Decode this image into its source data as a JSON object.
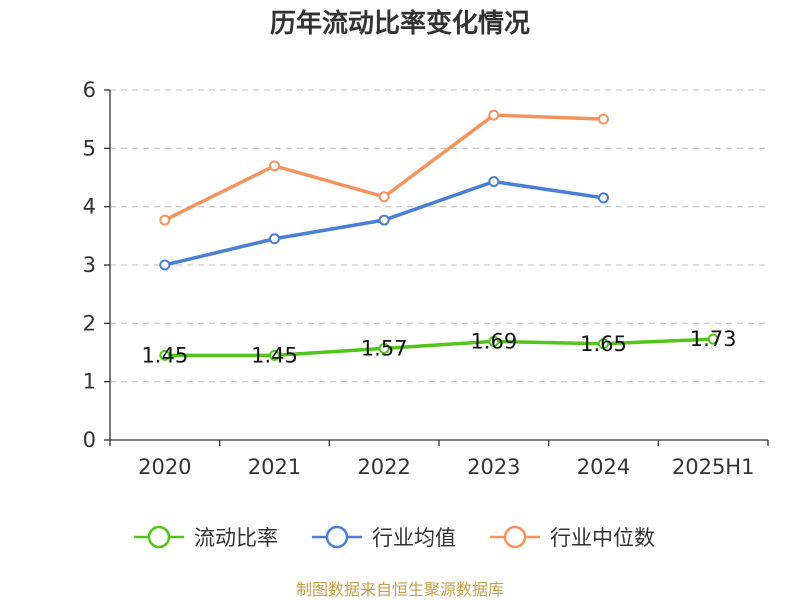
{
  "chart_data": {
    "type": "line",
    "title": "历年流动比率变化情况",
    "categories": [
      "2020",
      "2021",
      "2022",
      "2023",
      "2024",
      "2025H1"
    ],
    "ylim": [
      0,
      6
    ],
    "yticks": [
      0,
      1,
      2,
      3,
      4,
      5,
      6
    ],
    "grid": true,
    "legend_position": "bottom",
    "series": [
      {
        "name": "流动比率",
        "color": "#52c41a",
        "values": [
          1.45,
          1.45,
          1.57,
          1.69,
          1.65,
          1.73
        ],
        "labels": [
          "1.45",
          "1.45",
          "1.57",
          "1.69",
          "1.65",
          "1.73"
        ],
        "show_labels": true
      },
      {
        "name": "行业均值",
        "color": "#4a7fd4",
        "values": [
          3.0,
          3.45,
          3.77,
          4.43,
          4.15,
          null
        ],
        "show_labels": false
      },
      {
        "name": "行业中位数",
        "color": "#f5925e",
        "values": [
          3.77,
          4.7,
          4.17,
          5.57,
          5.5,
          null
        ],
        "show_labels": false
      }
    ]
  },
  "source_text": "制图数据来自恒生聚源数据库"
}
